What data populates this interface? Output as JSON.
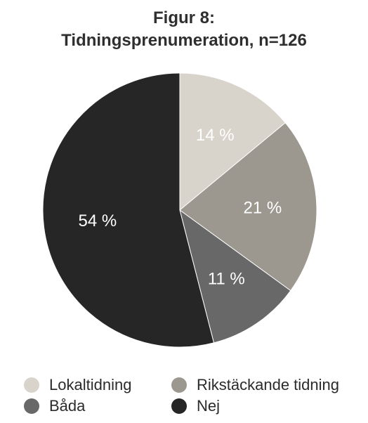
{
  "chart_data": {
    "type": "pie",
    "title": "Figur 8:",
    "subtitle": "Tidningsprenumeration, n=126",
    "unit": "%",
    "slices": [
      {
        "label": "Lokaltidning",
        "value": 14,
        "value_label": "14 %",
        "color": "#d9d4cb"
      },
      {
        "label": "Rikstäckande tidning",
        "value": 21,
        "value_label": "21 %",
        "color": "#9c9890"
      },
      {
        "label": "Båda",
        "value": 11,
        "value_label": "11 %",
        "color": "#686868"
      },
      {
        "label": "Nej",
        "value": 54,
        "value_label": "54 %",
        "color": "#262626"
      }
    ],
    "start_angle_deg": 0,
    "direction": "clockwise",
    "legend_position": "bottom"
  }
}
